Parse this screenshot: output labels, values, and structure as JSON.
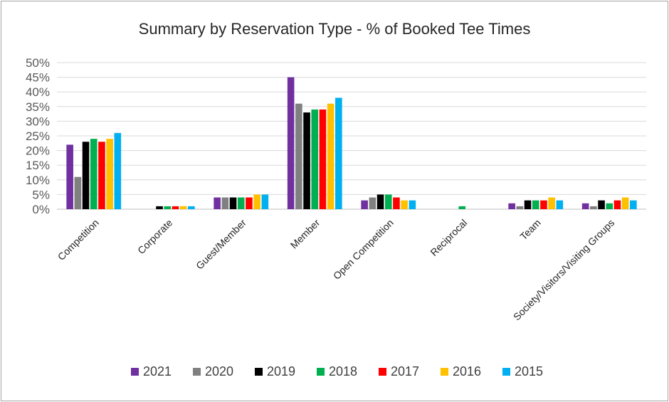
{
  "chart_data": {
    "type": "bar",
    "title": "Summary by Reservation Type - % of Booked Tee Times",
    "xlabel": "",
    "ylabel": "",
    "ylim": [
      0,
      50
    ],
    "yticks": [
      "0%",
      "5%",
      "10%",
      "15%",
      "20%",
      "25%",
      "30%",
      "35%",
      "40%",
      "45%",
      "50%"
    ],
    "grid": true,
    "legend_position": "bottom",
    "categories": [
      "Competition",
      "Corporate",
      "Guest/Member",
      "Member",
      "Open Competition",
      "Reciprocal",
      "Team",
      "Society/Visitors/Visiting Groups"
    ],
    "series": [
      {
        "name": "2021",
        "color": "#7030a0",
        "values": [
          22,
          0,
          4,
          45,
          3,
          0,
          2,
          2
        ]
      },
      {
        "name": "2020",
        "color": "#808080",
        "values": [
          11,
          0,
          4,
          36,
          4,
          0,
          1,
          1
        ]
      },
      {
        "name": "2019",
        "color": "#000000",
        "values": [
          23,
          1,
          4,
          33,
          5,
          0,
          3,
          3
        ]
      },
      {
        "name": "2018",
        "color": "#00b050",
        "values": [
          24,
          1,
          4,
          34,
          5,
          1,
          3,
          2
        ]
      },
      {
        "name": "2017",
        "color": "#ff0000",
        "values": [
          23,
          1,
          4,
          34,
          4,
          0,
          3,
          3
        ]
      },
      {
        "name": "2016",
        "color": "#ffc000",
        "values": [
          24,
          1,
          5,
          36,
          3,
          0,
          4,
          4
        ]
      },
      {
        "name": "2015",
        "color": "#00b0f0",
        "values": [
          26,
          1,
          5,
          38,
          3,
          0,
          3,
          3
        ]
      }
    ]
  }
}
